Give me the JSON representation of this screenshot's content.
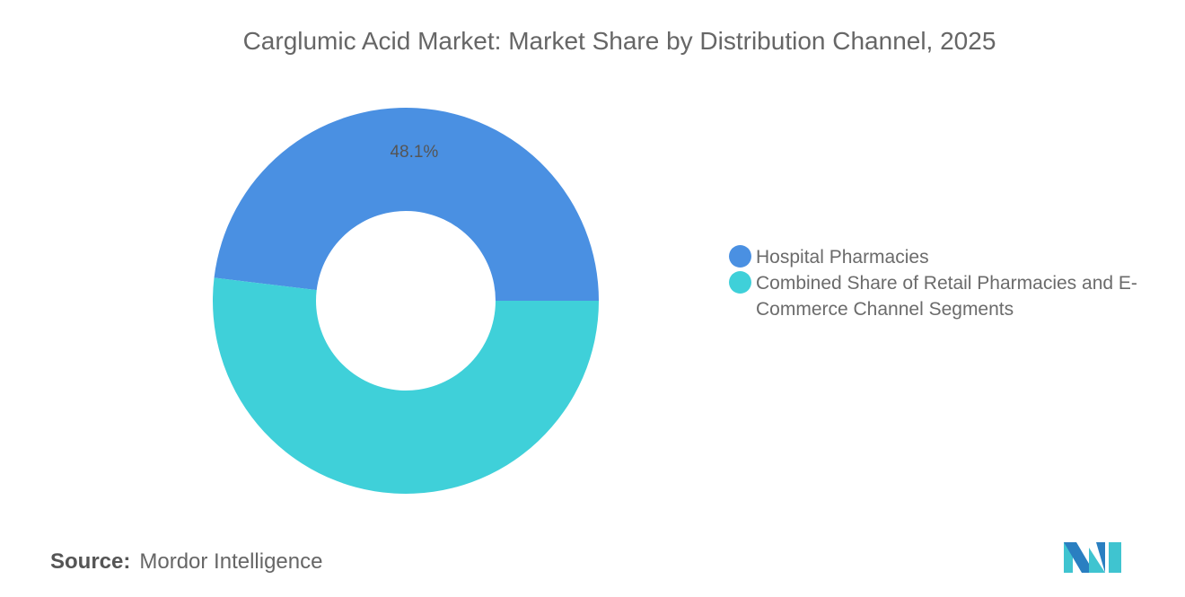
{
  "chart_data": {
    "type": "pie",
    "variant": "donut",
    "title": "Carglumic Acid Market: Market Share by Distribution Channel, 2025",
    "categories": [
      "Hospital Pharmacies",
      "Combined Share of Retail Pharmacies and E-Commerce Channel Segments"
    ],
    "values": [
      48.1,
      51.9
    ],
    "unit": "%",
    "data_labels": [
      "48.1%"
    ],
    "colors": [
      "#4a90e2",
      "#3fd0d9"
    ],
    "legend_position": "right"
  },
  "source": {
    "label": "Source:",
    "value": "Mordor Intelligence"
  },
  "logo": {
    "text": "Mordor Intelligence",
    "colors": [
      "#2a7fc1",
      "#3fc4d0"
    ]
  }
}
